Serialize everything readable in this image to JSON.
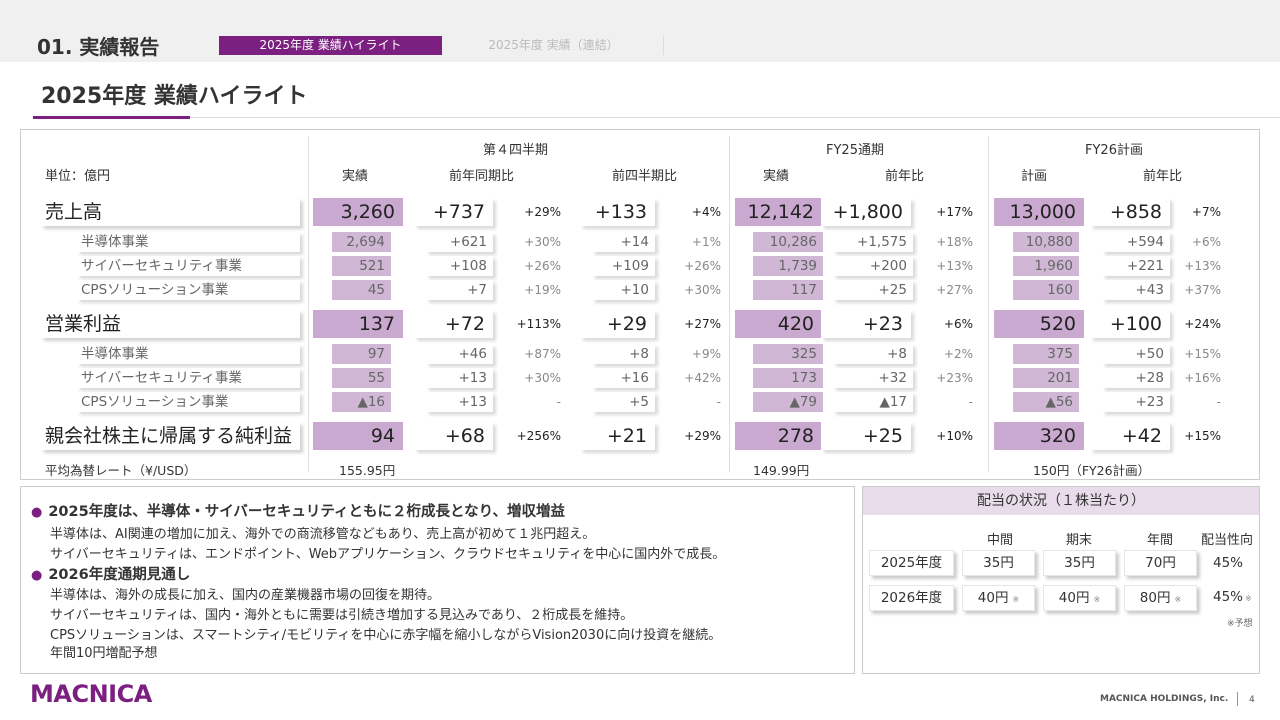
{
  "header": {
    "section": "01. 実績報告",
    "tab_active": "2025年度 業績ハイライト",
    "tab_inactive": "2025年度 実績（連結）"
  },
  "page_title": "2025年度 業績ハイライト",
  "table": {
    "unit": "単位：億円",
    "groups": {
      "q4": "第４四半期",
      "fy25": "FY25通期",
      "fy26": "FY26計画"
    },
    "cols": {
      "actual": "実績",
      "yoy": "前年同期比",
      "qoq": "前四半期比",
      "fy_actual": "実績",
      "fy_yoy": "前年比",
      "plan": "計画",
      "plan_yoy": "前年比"
    },
    "rows": [
      {
        "label": "売上高",
        "v": [
          "3,260",
          "+737",
          "+29%",
          "+133",
          "+4%",
          "12,142",
          "+1,800",
          "+17%",
          "13,000",
          "+858",
          "+7%"
        ]
      },
      {
        "label": "半導体事業",
        "v": [
          "2,694",
          "+621",
          "+30%",
          "+14",
          "+1%",
          "10,286",
          "+1,575",
          "+18%",
          "10,880",
          "+594",
          "+6%"
        ]
      },
      {
        "label": "サイバーセキュリティ事業",
        "v": [
          "521",
          "+108",
          "+26%",
          "+109",
          "+26%",
          "1,739",
          "+200",
          "+13%",
          "1,960",
          "+221",
          "+13%"
        ]
      },
      {
        "label": "CPSソリューション事業",
        "v": [
          "45",
          "+7",
          "+19%",
          "+10",
          "+30%",
          "117",
          "+25",
          "+27%",
          "160",
          "+43",
          "+37%"
        ]
      },
      {
        "label": "営業利益",
        "v": [
          "137",
          "+72",
          "+113%",
          "+29",
          "+27%",
          "420",
          "+23",
          "+6%",
          "520",
          "+100",
          "+24%"
        ]
      },
      {
        "label": "半導体事業",
        "v": [
          "97",
          "+46",
          "+87%",
          "+8",
          "+9%",
          "325",
          "+8",
          "+2%",
          "375",
          "+50",
          "+15%"
        ]
      },
      {
        "label": "サイバーセキュリティ事業",
        "v": [
          "55",
          "+13",
          "+30%",
          "+16",
          "+42%",
          "173",
          "+32",
          "+23%",
          "201",
          "+28",
          "+16%"
        ]
      },
      {
        "label": "CPSソリューション事業",
        "v": [
          "▲16",
          "+13",
          "-",
          "+5",
          "-",
          "▲79",
          "▲17",
          "-",
          "▲56",
          "+23",
          "-"
        ]
      },
      {
        "label": "親会社株主に帰属する純利益",
        "v": [
          "94",
          "+68",
          "+256%",
          "+21",
          "+29%",
          "278",
          "+25",
          "+10%",
          "320",
          "+42",
          "+15%"
        ]
      }
    ],
    "fx": {
      "label": "平均為替レート（¥/USD）",
      "q4": "155.95円",
      "fy25": "149.99円",
      "fy26": "150円（FY26計画）"
    }
  },
  "bullets": {
    "h1": "2025年度は、半導体・サイバーセキュリティともに２桁成長となり、増収増益",
    "t1": "半導体は、AI関連の増加に加え、海外での商流移管などもあり、売上高が初めて１兆円超え。",
    "t2": "サイバーセキュリティは、エンドポイント、Webアプリケーション、クラウドセキュリティを中心に国内外で成長。",
    "h2": "2026年度通期見通し",
    "t3": "半導体は、海外の成長に加え、国内の産業機器市場の回復を期待。",
    "t4": "サイバーセキュリティは、国内・海外ともに需要は引続き増加する見込みであり、２桁成長を維持。",
    "t5": "CPSソリューションは、スマートシティ/モビリティを中心に赤字幅を縮小しながらVision2030に向け投資を継続。",
    "t6": "年間10円増配予想"
  },
  "dividend": {
    "title": "配当の状況（１株当たり）",
    "cols": [
      "中間",
      "期末",
      "年間",
      "配当性向"
    ],
    "rows": [
      {
        "year": "2025年度",
        "v": [
          "35円",
          "35円",
          "70円",
          "45%"
        ]
      },
      {
        "year": "2026年度",
        "v": [
          "40円",
          "40円",
          "80円",
          "45%"
        ]
      }
    ],
    "mark": "※",
    "note": "※予想"
  },
  "footer": {
    "logo": "MACNICA",
    "company": "MACNICA HOLDINGS, Inc.",
    "page": "4"
  }
}
